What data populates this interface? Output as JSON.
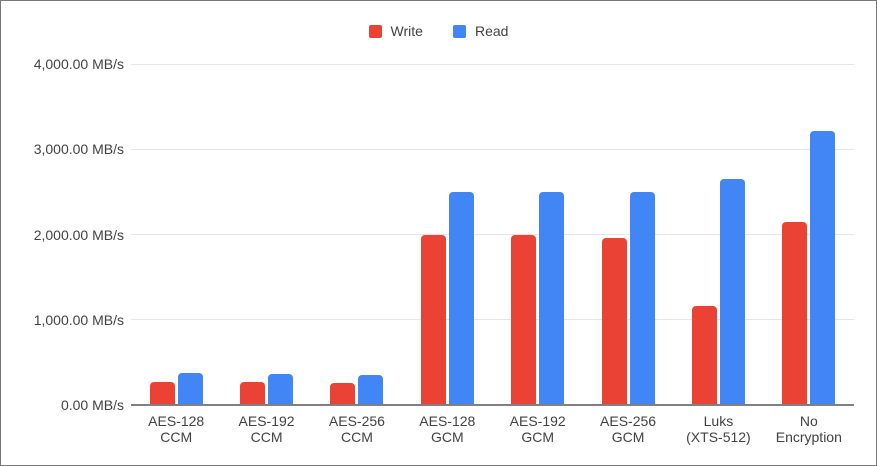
{
  "chart_data": {
    "type": "bar",
    "title": "",
    "xlabel": "",
    "ylabel": "",
    "categories": [
      "AES-128 CCM",
      "AES-192 CCM",
      "AES-256 CCM",
      "AES-128 GCM",
      "AES-192 GCM",
      "AES-256 GCM",
      "Luks (XTS-512)",
      "No Encryption"
    ],
    "series": [
      {
        "name": "Write",
        "color": "#EA4335",
        "values": [
          275,
          265,
          260,
          1990,
          1990,
          1955,
          1160,
          2150
        ]
      },
      {
        "name": "Read",
        "color": "#4285F4",
        "values": [
          370,
          360,
          355,
          2500,
          2500,
          2500,
          2655,
          3210
        ]
      }
    ],
    "ylim": [
      0,
      4000
    ],
    "y_ticks": [
      {
        "value": 0,
        "label": "0.00 MB/s"
      },
      {
        "value": 1000,
        "label": "1,000.00 MB/s"
      },
      {
        "value": 2000,
        "label": "2,000.00 MB/s"
      },
      {
        "value": 3000,
        "label": "3,000.00 MB/s"
      },
      {
        "value": 4000,
        "label": "4,000.00 MB/s"
      }
    ],
    "grid": true,
    "legend_position": "top-center"
  },
  "colors": {
    "write": "#EA4335",
    "read": "#4285F4",
    "gridline": "#E6E6E6",
    "axis_line": "#808080",
    "text": "#424242",
    "background": "#FFFFFF",
    "border": "#777777"
  }
}
